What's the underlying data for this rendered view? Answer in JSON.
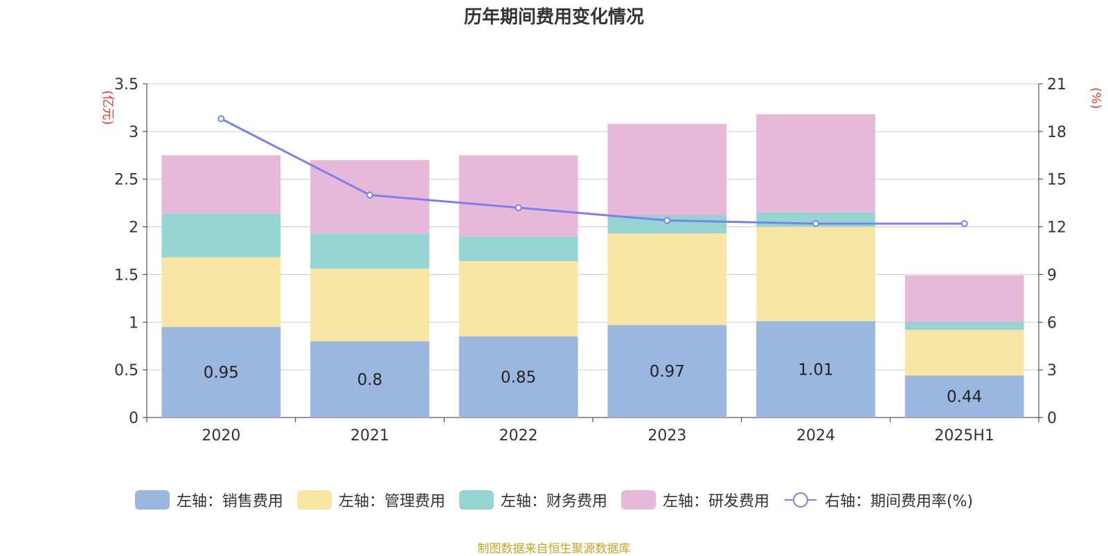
{
  "title": "历年期间费用变化情况",
  "source": "制图数据来自恒生聚源数据库",
  "chart_data": {
    "type": "bar",
    "stacked": true,
    "categories": [
      "2020",
      "2021",
      "2022",
      "2023",
      "2024",
      "2025H1"
    ],
    "series": [
      {
        "name": "左轴：销售费用",
        "axis": "left",
        "color": "#9bb7e0",
        "values": [
          0.95,
          0.8,
          0.85,
          0.97,
          1.01,
          0.44
        ]
      },
      {
        "name": "左轴：管理费用",
        "axis": "left",
        "color": "#f7e6a6",
        "values": [
          0.73,
          0.76,
          0.79,
          0.96,
          0.99,
          0.48
        ]
      },
      {
        "name": "左轴：财务费用",
        "axis": "left",
        "color": "#96d4d4",
        "values": [
          0.46,
          0.37,
          0.26,
          0.19,
          0.15,
          0.08
        ]
      },
      {
        "name": "左轴：研发费用",
        "axis": "left",
        "color": "#e8b8d8",
        "values": [
          0.61,
          0.77,
          0.85,
          0.96,
          1.03,
          0.49
        ]
      },
      {
        "name": "右轴：期间费用率(%)",
        "type": "line",
        "axis": "right",
        "color": "#7b7ff0",
        "values": [
          18.8,
          14.0,
          13.2,
          12.4,
          12.2,
          12.2
        ]
      }
    ],
    "data_labels": [
      "0.95",
      "0.8",
      "0.85",
      "0.97",
      "1.01",
      "0.44"
    ],
    "y_left": {
      "label": "(亿元)",
      "ylim": [
        0,
        3.5
      ],
      "ticks": [
        "0",
        "0.5",
        "1",
        "1.5",
        "2",
        "2.5",
        "3",
        "3.5"
      ]
    },
    "y_right": {
      "label": "(%)",
      "ylim": [
        0,
        21
      ],
      "ticks": [
        "0",
        "3",
        "6",
        "9",
        "12",
        "15",
        "18",
        "21"
      ]
    },
    "grid": true,
    "legend_position": "bottom"
  }
}
